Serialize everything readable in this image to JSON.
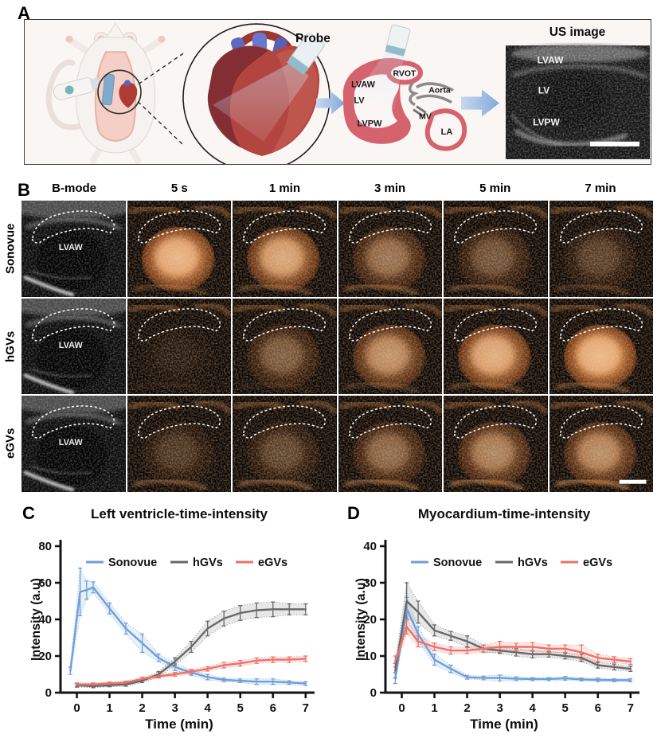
{
  "panels": {
    "a": {
      "label": "A",
      "probe_label": "Probe",
      "us_title": "US image",
      "schematic_labels": {
        "rvot": "RVOT",
        "lvaw": "LVAW",
        "lv": "LV",
        "aorta": "Aorta",
        "mv": "MV",
        "lvpw": "LVPW",
        "la": "LA"
      },
      "us_labels": {
        "lvaw": "LVAW",
        "lv": "LV",
        "lvpw": "LVPW"
      }
    },
    "b": {
      "label": "B",
      "column_headers": [
        "B-mode",
        "5 s",
        "1 min",
        "3 min",
        "5 min",
        "7 min"
      ],
      "rows": [
        {
          "label": "Sonovue",
          "roi_label": "LVAW",
          "enhancement_levels": [
            0,
            0.95,
            0.78,
            0.42,
            0.28,
            0.2
          ],
          "bottom_streak": [
            0,
            0.35,
            0.4,
            0.5,
            0.45,
            0.3
          ]
        },
        {
          "label": "hGVs",
          "roi_label": "LVAW",
          "enhancement_levels": [
            0,
            0.06,
            0.32,
            0.62,
            0.85,
            1.0
          ],
          "bottom_streak": [
            0,
            0.1,
            0.12,
            0.3,
            0.4,
            0.5
          ]
        },
        {
          "label": "eGVs",
          "roi_label": "LVAW",
          "enhancement_levels": [
            0,
            0.16,
            0.22,
            0.38,
            0.52,
            0.58
          ],
          "bottom_streak": [
            0,
            0.5,
            0.55,
            0.6,
            0.65,
            0.7
          ]
        }
      ],
      "scale_bar": true
    },
    "c": {
      "label": "C"
    },
    "d": {
      "label": "D"
    }
  },
  "chart_data": [
    {
      "type": "line",
      "title": "Left ventricle-time-intensity",
      "xlabel": "Time (min)",
      "ylabel": "Intensity (a.u)",
      "xlim": [
        -0.5,
        7.2
      ],
      "ylim": [
        0,
        80
      ],
      "xticks": [
        0,
        1,
        2,
        3,
        4,
        5,
        6,
        7
      ],
      "yticks": [
        0,
        20,
        40,
        60,
        80
      ],
      "grid": false,
      "legend_position": "top-inside",
      "series": [
        {
          "name": "Sonovue",
          "color": "#6f9fd9",
          "x": [
            -0.2,
            0.1,
            0.3,
            0.5,
            1,
            1.5,
            2,
            2.5,
            3,
            3.5,
            4,
            4.5,
            5,
            5.5,
            6,
            6.5,
            7
          ],
          "y": [
            12,
            55,
            56,
            57.5,
            46,
            35,
            27,
            19,
            14,
            11,
            8.5,
            7,
            6.5,
            6,
            6,
            5.5,
            5
          ],
          "err": [
            2,
            13,
            5,
            3,
            3,
            3,
            5,
            2,
            2,
            1.5,
            1.5,
            1,
            1,
            1.5,
            1.5,
            1,
            1
          ]
        },
        {
          "name": "hGVs",
          "color": "#686868",
          "x": [
            0,
            0.5,
            1,
            1.5,
            2,
            2.5,
            3,
            3.5,
            4,
            4.5,
            5,
            5.5,
            6,
            6.5,
            7
          ],
          "y": [
            4,
            3.5,
            4,
            4.5,
            6.5,
            10,
            17,
            25,
            35,
            40.5,
            43.5,
            45,
            45.5,
            45.5,
            45.5
          ],
          "err": [
            1,
            0.8,
            0.8,
            1,
            1,
            1.5,
            2,
            3,
            4,
            4,
            4,
            4,
            4,
            3,
            3
          ]
        },
        {
          "name": "eGVs",
          "color": "#ec7168",
          "x": [
            0,
            0.5,
            1,
            1.5,
            2,
            2.5,
            3,
            3.5,
            4,
            4.5,
            5,
            5.5,
            6,
            6.5,
            7
          ],
          "y": [
            4.5,
            4.5,
            5,
            5.5,
            7.5,
            9,
            10,
            11.5,
            13,
            15,
            16,
            17.5,
            18,
            18,
            18.5
          ],
          "err": [
            0.8,
            0.8,
            0.8,
            0.8,
            1,
            1,
            1,
            1.2,
            1.2,
            1.5,
            1.5,
            1.5,
            1.5,
            1.5,
            1.5
          ]
        }
      ]
    },
    {
      "type": "line",
      "title": "Myocardium-time-intensity",
      "xlabel": "Time (min)",
      "ylabel": "Intensity (a.u)",
      "xlim": [
        -0.5,
        7.2
      ],
      "ylim": [
        0,
        40
      ],
      "xticks": [
        0,
        1,
        2,
        3,
        4,
        5,
        6,
        7
      ],
      "yticks": [
        0,
        10,
        20,
        30,
        40
      ],
      "grid": false,
      "legend_position": "top-inside",
      "series": [
        {
          "name": "Sonovue",
          "color": "#6f9fd9",
          "x": [
            -0.2,
            0.15,
            0.5,
            1,
            1.5,
            2,
            2.5,
            3,
            3.5,
            4,
            4.5,
            5,
            5.5,
            6,
            6.5,
            7
          ],
          "y": [
            4,
            23,
            16,
            9,
            6.5,
            4.2,
            4,
            4,
            3.8,
            3.7,
            3.7,
            3.9,
            3.6,
            3.5,
            3.4,
            3.4
          ],
          "err": [
            1.5,
            3,
            2,
            1.5,
            1,
            0.5,
            0.5,
            0.8,
            0.5,
            0.4,
            0.4,
            0.5,
            0.4,
            0.5,
            0.4,
            0.4
          ]
        },
        {
          "name": "hGVs",
          "color": "#686868",
          "x": [
            -0.2,
            0.15,
            0.5,
            1,
            1.5,
            2,
            2.5,
            3,
            3.5,
            4,
            4.5,
            5,
            5.5,
            6,
            6.5,
            7
          ],
          "y": [
            6,
            25,
            22,
            17,
            15.5,
            14,
            12,
            11.5,
            11,
            10.5,
            10.5,
            10,
            9.5,
            7.5,
            7,
            6.5
          ],
          "err": [
            2,
            5,
            3,
            1.5,
            1.2,
            1.5,
            1,
            0.8,
            1,
            1,
            0.8,
            0.8,
            1,
            0.8,
            0.8,
            0.7
          ]
        },
        {
          "name": "eGVs",
          "color": "#ec7168",
          "x": [
            -0.2,
            0.15,
            0.5,
            1,
            1.5,
            2,
            2.5,
            3,
            3.5,
            4,
            4.5,
            5,
            5.5,
            6,
            6.5,
            7
          ],
          "y": [
            8.5,
            18,
            14,
            12.5,
            11.5,
            11.5,
            12,
            12.5,
            12.5,
            12.5,
            12,
            12,
            11,
            9.5,
            9,
            8.5
          ],
          "err": [
            1.5,
            2,
            1.5,
            1,
            1,
            0.8,
            1,
            1.5,
            1,
            1.2,
            1,
            1,
            2,
            1,
            0.8,
            0.8
          ]
        }
      ]
    }
  ],
  "colors": {
    "sonovue": "#6f9fd9",
    "hgvs": "#686868",
    "egvs": "#ec7168",
    "contrast_copper": "#c4763a",
    "schematic_red": "#d5636e",
    "panel_a_bg": "#faf6f4"
  }
}
